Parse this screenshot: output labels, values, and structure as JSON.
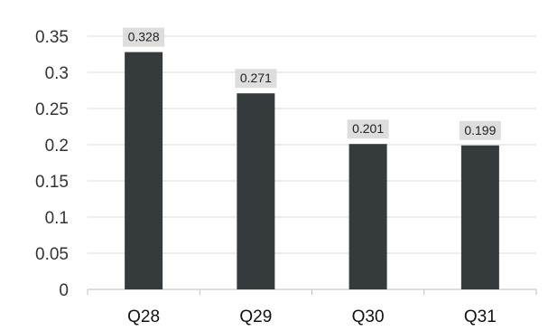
{
  "chart_data": {
    "type": "bar",
    "categories": [
      "Q28",
      "Q29",
      "Q30",
      "Q31"
    ],
    "values": [
      0.328,
      0.271,
      0.201,
      0.199
    ],
    "data_labels": [
      "0.328",
      "0.271",
      "0.201",
      "0.199"
    ],
    "y_ticks": [
      "0",
      "0.05",
      "0.1",
      "0.15",
      "0.2",
      "0.25",
      "0.3",
      "0.35"
    ],
    "ylim": [
      0,
      0.35
    ],
    "grid": true,
    "legend": "none",
    "colors": {
      "bar": "#353b3d",
      "label_box": "#d9d9d9",
      "grid": "#d9d9d9",
      "axis": "#bfbfbf"
    }
  }
}
